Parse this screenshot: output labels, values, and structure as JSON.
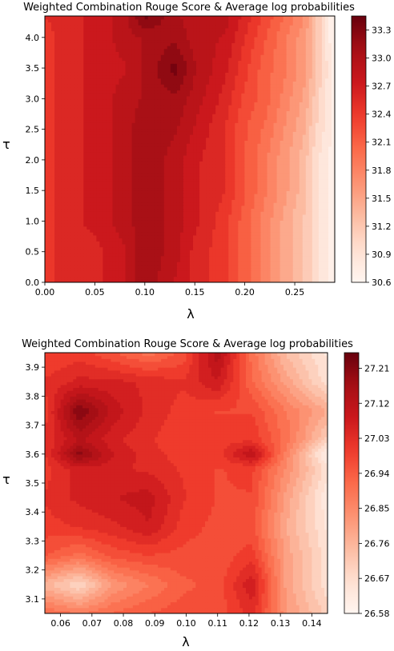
{
  "chart_data": [
    {
      "type": "heatmap",
      "title": "Weighted Combination Rouge Score & Average log probabilities",
      "xlabel": "λ",
      "ylabel": "τ",
      "xlim": [
        0.0,
        0.29
      ],
      "ylim": [
        0.0,
        4.35
      ],
      "x_ticks": [
        "0.00",
        "0.05",
        "0.10",
        "0.15",
        "0.20",
        "0.25"
      ],
      "x_tick_values": [
        0.0,
        0.05,
        0.1,
        0.15,
        0.2,
        0.25
      ],
      "y_ticks": [
        "0.0",
        "0.5",
        "1.0",
        "1.5",
        "2.0",
        "2.5",
        "3.0",
        "3.5",
        "4.0"
      ],
      "y_tick_values": [
        0.0,
        0.5,
        1.0,
        1.5,
        2.0,
        2.5,
        3.0,
        3.5,
        4.0
      ],
      "colorbar_ticks": [
        "30.6",
        "30.9",
        "31.2",
        "31.5",
        "31.8",
        "32.1",
        "32.4",
        "32.7",
        "33.0",
        "33.3"
      ],
      "colorbar_range": [
        30.6,
        33.45
      ],
      "x": [
        0.0,
        0.02,
        0.05,
        0.08,
        0.1,
        0.13,
        0.15,
        0.18,
        0.2,
        0.22,
        0.24,
        0.26,
        0.27,
        0.28,
        0.29
      ],
      "y": [
        0.0,
        0.5,
        1.0,
        1.5,
        2.0,
        2.5,
        3.0,
        3.5,
        4.0,
        4.35
      ],
      "z": [
        [
          32.4,
          32.6,
          32.6,
          32.8,
          33.1,
          32.8,
          32.6,
          32.4,
          32.1,
          31.8,
          31.5,
          31.2,
          31.0,
          30.8,
          30.65
        ],
        [
          32.4,
          32.6,
          32.6,
          32.8,
          33.1,
          32.9,
          32.6,
          32.4,
          32.1,
          31.8,
          31.5,
          31.2,
          31.0,
          30.8,
          30.65
        ],
        [
          32.4,
          32.6,
          32.7,
          32.9,
          33.1,
          32.9,
          32.7,
          32.4,
          32.1,
          31.8,
          31.5,
          31.2,
          31.0,
          30.8,
          30.65
        ],
        [
          32.4,
          32.6,
          32.7,
          32.9,
          33.1,
          32.9,
          32.7,
          32.5,
          32.2,
          31.9,
          31.6,
          31.3,
          31.0,
          30.8,
          30.65
        ],
        [
          32.4,
          32.6,
          32.7,
          32.9,
          33.1,
          32.9,
          32.7,
          32.5,
          32.2,
          31.9,
          31.6,
          31.3,
          31.0,
          30.8,
          30.65
        ],
        [
          32.4,
          32.6,
          32.7,
          32.9,
          33.1,
          33.0,
          32.8,
          32.5,
          32.2,
          32.0,
          31.7,
          31.4,
          31.1,
          30.9,
          30.7
        ],
        [
          32.4,
          32.6,
          32.7,
          32.9,
          33.0,
          33.1,
          32.9,
          32.6,
          32.3,
          32.1,
          31.8,
          31.5,
          31.2,
          30.9,
          30.7
        ],
        [
          32.4,
          32.6,
          32.7,
          32.8,
          33.0,
          33.35,
          33.0,
          32.7,
          32.4,
          32.1,
          31.9,
          31.6,
          31.3,
          31.0,
          30.7
        ],
        [
          32.4,
          32.6,
          32.7,
          32.9,
          33.0,
          33.1,
          32.9,
          32.8,
          32.5,
          32.2,
          31.9,
          31.6,
          31.3,
          30.9,
          30.6
        ],
        [
          32.5,
          32.6,
          32.7,
          32.9,
          33.35,
          33.0,
          32.9,
          32.9,
          32.6,
          32.3,
          32.0,
          31.7,
          31.3,
          30.9,
          30.6
        ]
      ]
    },
    {
      "type": "heatmap",
      "title": "Weighted Combination Rouge Score & Average log probabilities",
      "xlabel": "λ",
      "ylabel": "τ",
      "xlim": [
        0.055,
        0.145
      ],
      "ylim": [
        3.05,
        3.95
      ],
      "x_ticks": [
        "0.06",
        "0.07",
        "0.08",
        "0.09",
        "0.10",
        "0.11",
        "0.12",
        "0.13",
        "0.14"
      ],
      "x_tick_values": [
        0.06,
        0.07,
        0.08,
        0.09,
        0.1,
        0.11,
        0.12,
        0.13,
        0.14
      ],
      "y_ticks": [
        "3.1",
        "3.2",
        "3.3",
        "3.4",
        "3.5",
        "3.6",
        "3.7",
        "3.8",
        "3.9"
      ],
      "y_tick_values": [
        3.1,
        3.2,
        3.3,
        3.4,
        3.5,
        3.6,
        3.7,
        3.8,
        3.9
      ],
      "colorbar_ticks": [
        "26.58",
        "26.67",
        "26.76",
        "26.85",
        "26.94",
        "27.03",
        "27.12",
        "27.21"
      ],
      "colorbar_range": [
        26.58,
        27.25
      ],
      "x": [
        0.055,
        0.066,
        0.077,
        0.088,
        0.099,
        0.11,
        0.121,
        0.132,
        0.145
      ],
      "y": [
        3.05,
        3.15,
        3.25,
        3.35,
        3.45,
        3.55,
        3.6,
        3.65,
        3.75,
        3.85,
        3.95
      ],
      "z": [
        [
          26.92,
          26.88,
          26.92,
          26.95,
          26.97,
          26.96,
          27.03,
          26.82,
          26.7
        ],
        [
          26.76,
          26.68,
          26.82,
          26.88,
          26.94,
          26.96,
          27.08,
          26.8,
          26.66
        ],
        [
          26.95,
          26.9,
          26.96,
          26.98,
          26.97,
          26.96,
          27.0,
          26.8,
          26.66
        ],
        [
          27.0,
          27.02,
          27.04,
          27.08,
          27.0,
          26.97,
          26.96,
          26.78,
          26.64
        ],
        [
          27.02,
          27.06,
          27.08,
          27.1,
          27.02,
          26.98,
          26.98,
          26.8,
          26.62
        ],
        [
          27.0,
          27.07,
          27.06,
          27.04,
          27.01,
          26.98,
          26.99,
          26.84,
          26.66
        ],
        [
          27.01,
          27.2,
          27.08,
          27.03,
          27.0,
          27.0,
          27.12,
          26.86,
          26.6
        ],
        [
          27.02,
          27.12,
          27.06,
          27.02,
          26.99,
          27.0,
          27.01,
          26.9,
          26.7
        ],
        [
          27.0,
          27.22,
          27.1,
          27.04,
          27.0,
          26.98,
          26.98,
          26.88,
          26.78
        ],
        [
          27.02,
          27.06,
          27.06,
          27.04,
          27.02,
          27.08,
          26.92,
          26.8,
          26.66
        ],
        [
          26.98,
          27.0,
          26.95,
          26.9,
          26.96,
          27.14,
          26.9,
          26.74,
          26.64
        ]
      ]
    }
  ]
}
